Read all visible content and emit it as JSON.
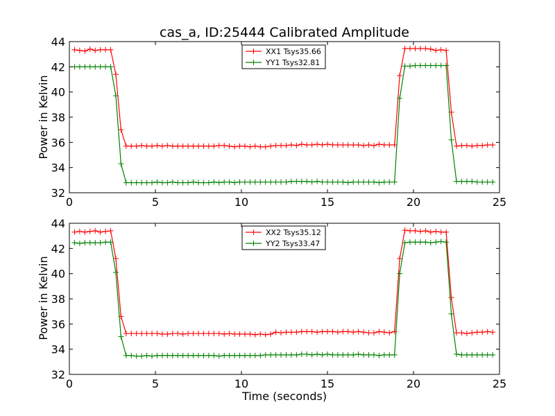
{
  "chart_data": [
    {
      "type": "line",
      "title": "cas_a, ID:25444 Calibrated Amplitude",
      "xlabel": "",
      "ylabel": "Power in Kelvin",
      "xlim": [
        0,
        25
      ],
      "ylim": [
        32,
        44
      ],
      "xticks": [
        "0",
        "5",
        "10",
        "15",
        "20",
        "25"
      ],
      "yticks": [
        "32",
        "34",
        "36",
        "38",
        "40",
        "42",
        "44"
      ],
      "grid": false,
      "legend_position": "top-center",
      "marker": "plus",
      "x": [
        0.3,
        0.6,
        0.9,
        1.2,
        1.5,
        1.8,
        2.1,
        2.4,
        2.7,
        3.0,
        3.3,
        3.6,
        3.9,
        4.2,
        4.5,
        4.8,
        5.1,
        5.4,
        5.7,
        6.0,
        6.3,
        6.6,
        6.9,
        7.2,
        7.5,
        7.8,
        8.1,
        8.4,
        8.7,
        9.0,
        9.3,
        9.6,
        9.9,
        10.2,
        10.5,
        10.8,
        11.1,
        11.4,
        11.7,
        12.0,
        12.3,
        12.6,
        12.9,
        13.2,
        13.5,
        13.8,
        14.1,
        14.4,
        14.7,
        15.0,
        15.3,
        15.6,
        15.9,
        16.2,
        16.5,
        16.8,
        17.1,
        17.4,
        17.7,
        18.0,
        18.3,
        18.6,
        18.9,
        19.2,
        19.5,
        19.8,
        20.1,
        20.4,
        20.7,
        21.0,
        21.3,
        21.6,
        21.9,
        22.2,
        22.5,
        22.8,
        23.1,
        23.4,
        23.7,
        24.0,
        24.3,
        24.6
      ],
      "series": [
        {
          "name": "XX1 Tsys35.66",
          "color": "#ff0000",
          "values": [
            43.35,
            43.3,
            43.25,
            43.4,
            43.3,
            43.35,
            43.35,
            43.35,
            41.4,
            37.0,
            35.7,
            35.7,
            35.7,
            35.75,
            35.7,
            35.7,
            35.75,
            35.7,
            35.75,
            35.7,
            35.7,
            35.7,
            35.7,
            35.7,
            35.7,
            35.7,
            35.7,
            35.7,
            35.75,
            35.75,
            35.7,
            35.65,
            35.7,
            35.7,
            35.65,
            35.7,
            35.65,
            35.65,
            35.7,
            35.75,
            35.75,
            35.75,
            35.8,
            35.75,
            35.85,
            35.8,
            35.8,
            35.85,
            35.8,
            35.85,
            35.8,
            35.8,
            35.8,
            35.8,
            35.8,
            35.8,
            35.75,
            35.8,
            35.75,
            35.85,
            35.8,
            35.8,
            35.8,
            41.3,
            43.45,
            43.45,
            43.45,
            43.45,
            43.45,
            43.4,
            43.3,
            43.35,
            43.3,
            38.4,
            35.7,
            35.75,
            35.75,
            35.7,
            35.75,
            35.75,
            35.8,
            35.8
          ]
        },
        {
          "name": "YY1 Tsys32.81",
          "color": "#008000",
          "values": [
            42.0,
            42.0,
            42.0,
            42.0,
            42.0,
            42.0,
            42.0,
            42.0,
            39.7,
            34.3,
            32.8,
            32.8,
            32.8,
            32.8,
            32.8,
            32.8,
            32.85,
            32.8,
            32.8,
            32.85,
            32.8,
            32.8,
            32.8,
            32.85,
            32.8,
            32.8,
            32.8,
            32.85,
            32.8,
            32.85,
            32.85,
            32.8,
            32.85,
            32.85,
            32.85,
            32.85,
            32.85,
            32.85,
            32.85,
            32.85,
            32.85,
            32.85,
            32.9,
            32.9,
            32.9,
            32.9,
            32.85,
            32.9,
            32.85,
            32.85,
            32.85,
            32.85,
            32.85,
            32.8,
            32.85,
            32.85,
            32.85,
            32.85,
            32.85,
            32.8,
            32.85,
            32.85,
            32.85,
            39.5,
            42.05,
            42.05,
            42.1,
            42.1,
            42.1,
            42.1,
            42.1,
            42.1,
            42.1,
            36.2,
            32.9,
            32.9,
            32.9,
            32.9,
            32.85,
            32.85,
            32.85,
            32.85
          ]
        }
      ]
    },
    {
      "type": "line",
      "title": "",
      "xlabel": "Time (seconds)",
      "ylabel": "Power in Kelvin",
      "xlim": [
        0,
        25
      ],
      "ylim": [
        32,
        44
      ],
      "xticks": [
        "0",
        "5",
        "10",
        "15",
        "20",
        "25"
      ],
      "yticks": [
        "32",
        "34",
        "36",
        "38",
        "40",
        "42",
        "44"
      ],
      "grid": false,
      "legend_position": "top-center",
      "marker": "plus",
      "x": [
        0.3,
        0.6,
        0.9,
        1.2,
        1.5,
        1.8,
        2.1,
        2.4,
        2.7,
        3.0,
        3.3,
        3.6,
        3.9,
        4.2,
        4.5,
        4.8,
        5.1,
        5.4,
        5.7,
        6.0,
        6.3,
        6.6,
        6.9,
        7.2,
        7.5,
        7.8,
        8.1,
        8.4,
        8.7,
        9.0,
        9.3,
        9.6,
        9.9,
        10.2,
        10.5,
        10.8,
        11.1,
        11.4,
        11.7,
        12.0,
        12.3,
        12.6,
        12.9,
        13.2,
        13.5,
        13.8,
        14.1,
        14.4,
        14.7,
        15.0,
        15.3,
        15.6,
        15.9,
        16.2,
        16.5,
        16.8,
        17.1,
        17.4,
        17.7,
        18.0,
        18.3,
        18.6,
        18.9,
        19.2,
        19.5,
        19.8,
        20.1,
        20.4,
        20.7,
        21.0,
        21.3,
        21.6,
        21.9,
        22.2,
        22.5,
        22.8,
        23.1,
        23.4,
        23.7,
        24.0,
        24.3,
        24.6
      ],
      "series": [
        {
          "name": "XX2 Tsys35.12",
          "color": "#ff0000",
          "values": [
            43.3,
            43.35,
            43.3,
            43.35,
            43.4,
            43.3,
            43.35,
            43.4,
            41.2,
            36.6,
            35.25,
            35.25,
            35.25,
            35.25,
            35.25,
            35.25,
            35.25,
            35.2,
            35.2,
            35.25,
            35.25,
            35.2,
            35.25,
            35.25,
            35.25,
            35.25,
            35.25,
            35.25,
            35.25,
            35.2,
            35.25,
            35.2,
            35.2,
            35.2,
            35.2,
            35.15,
            35.2,
            35.15,
            35.2,
            35.35,
            35.3,
            35.35,
            35.35,
            35.35,
            35.4,
            35.4,
            35.4,
            35.35,
            35.4,
            35.4,
            35.4,
            35.35,
            35.4,
            35.4,
            35.35,
            35.4,
            35.35,
            35.3,
            35.3,
            35.4,
            35.35,
            35.3,
            35.4,
            41.2,
            43.45,
            43.4,
            43.4,
            43.35,
            43.4,
            43.3,
            43.35,
            43.3,
            43.3,
            38.1,
            35.3,
            35.3,
            35.25,
            35.3,
            35.35,
            35.35,
            35.4,
            35.35
          ]
        },
        {
          "name": "YY2 Tsys33.47",
          "color": "#008000",
          "values": [
            42.45,
            42.4,
            42.45,
            42.45,
            42.45,
            42.45,
            42.5,
            42.5,
            40.1,
            35.0,
            33.5,
            33.5,
            33.45,
            33.45,
            33.5,
            33.45,
            33.5,
            33.5,
            33.5,
            33.5,
            33.5,
            33.5,
            33.5,
            33.5,
            33.5,
            33.5,
            33.5,
            33.5,
            33.45,
            33.5,
            33.5,
            33.5,
            33.5,
            33.5,
            33.5,
            33.5,
            33.5,
            33.55,
            33.55,
            33.55,
            33.55,
            33.55,
            33.55,
            33.55,
            33.6,
            33.6,
            33.55,
            33.6,
            33.55,
            33.6,
            33.55,
            33.55,
            33.55,
            33.55,
            33.55,
            33.6,
            33.55,
            33.55,
            33.55,
            33.5,
            33.55,
            33.55,
            33.55,
            40.0,
            42.45,
            42.5,
            42.5,
            42.5,
            42.5,
            42.45,
            42.5,
            42.55,
            42.5,
            36.8,
            33.6,
            33.55,
            33.55,
            33.55,
            33.55,
            33.55,
            33.55,
            33.55
          ]
        }
      ]
    }
  ]
}
